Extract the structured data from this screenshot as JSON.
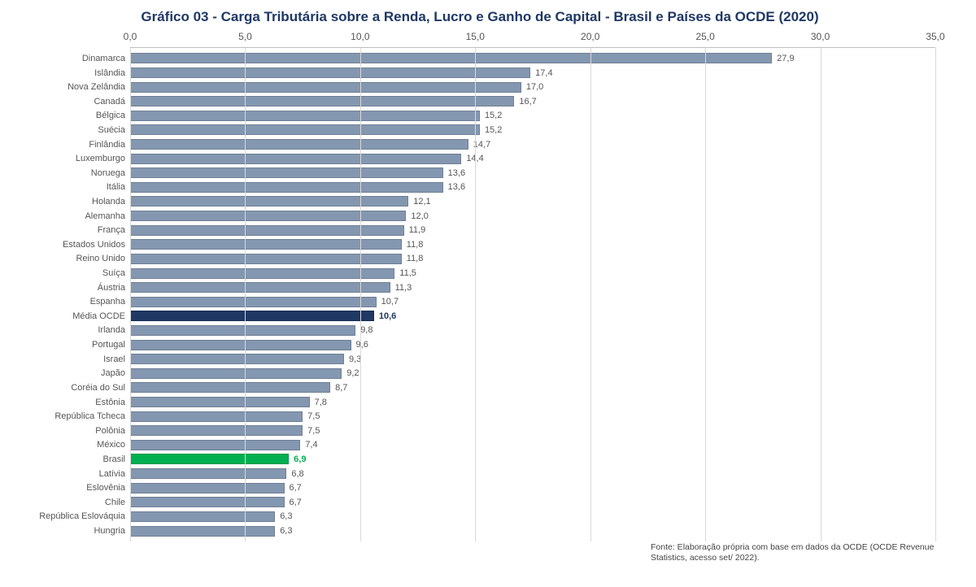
{
  "chart": {
    "type": "bar-horizontal",
    "title": "Gráfico 03 - Carga Tributária sobre a Renda, Lucro e Ganho de Capital - Brasil e Países da OCDE (2020)",
    "title_color": "#1f3864",
    "title_fontsize": 17,
    "title_fontweight": "bold",
    "background_color": "#ffffff",
    "grid_color": "#d9d9d9",
    "axis_line_color": "#bfbfbf",
    "label_fontsize": 11,
    "tick_fontsize": 12,
    "value_fontsize": 11,
    "text_color": "#555555",
    "x_axis": {
      "min": 0.0,
      "max": 35.0,
      "tick_step": 5.0,
      "tick_labels": [
        "0,0",
        "5,0",
        "10,0",
        "15,0",
        "20,0",
        "25,0",
        "30,0",
        "35,0"
      ],
      "position": "top"
    },
    "default_bar_color": "#8497b0",
    "bar_border_color": "rgba(0,0,0,0.15)",
    "highlight_colors": {
      "ocde": "#1f3864",
      "brasil": "#00b050"
    },
    "data": [
      {
        "label": "Dinamarca",
        "value": 27.9,
        "value_str": "27,9",
        "color": "#8497b0",
        "bold": false
      },
      {
        "label": "Islândia",
        "value": 17.4,
        "value_str": "17,4",
        "color": "#8497b0",
        "bold": false
      },
      {
        "label": "Nova Zelândia",
        "value": 17.0,
        "value_str": "17,0",
        "color": "#8497b0",
        "bold": false
      },
      {
        "label": "Canadá",
        "value": 16.7,
        "value_str": "16,7",
        "color": "#8497b0",
        "bold": false
      },
      {
        "label": "Bélgica",
        "value": 15.2,
        "value_str": "15,2",
        "color": "#8497b0",
        "bold": false
      },
      {
        "label": "Suécia",
        "value": 15.2,
        "value_str": "15,2",
        "color": "#8497b0",
        "bold": false
      },
      {
        "label": "Finlândia",
        "value": 14.7,
        "value_str": "14,7",
        "color": "#8497b0",
        "bold": false
      },
      {
        "label": "Luxemburgo",
        "value": 14.4,
        "value_str": "14,4",
        "color": "#8497b0",
        "bold": false
      },
      {
        "label": "Noruega",
        "value": 13.6,
        "value_str": "13,6",
        "color": "#8497b0",
        "bold": false
      },
      {
        "label": "Itália",
        "value": 13.6,
        "value_str": "13,6",
        "color": "#8497b0",
        "bold": false
      },
      {
        "label": "Holanda",
        "value": 12.1,
        "value_str": "12,1",
        "color": "#8497b0",
        "bold": false
      },
      {
        "label": "Alemanha",
        "value": 12.0,
        "value_str": "12,0",
        "color": "#8497b0",
        "bold": false
      },
      {
        "label": "França",
        "value": 11.9,
        "value_str": "11,9",
        "color": "#8497b0",
        "bold": false
      },
      {
        "label": "Estados Unidos",
        "value": 11.8,
        "value_str": "11,8",
        "color": "#8497b0",
        "bold": false
      },
      {
        "label": "Reino Unido",
        "value": 11.8,
        "value_str": "11,8",
        "color": "#8497b0",
        "bold": false
      },
      {
        "label": "Suíça",
        "value": 11.5,
        "value_str": "11,5",
        "color": "#8497b0",
        "bold": false
      },
      {
        "label": "Áustria",
        "value": 11.3,
        "value_str": "11,3",
        "color": "#8497b0",
        "bold": false
      },
      {
        "label": "Espanha",
        "value": 10.7,
        "value_str": "10,7",
        "color": "#8497b0",
        "bold": false
      },
      {
        "label": "Média OCDE",
        "value": 10.6,
        "value_str": "10,6",
        "color": "#1f3864",
        "bold": true
      },
      {
        "label": "Irlanda",
        "value": 9.8,
        "value_str": "9,8",
        "color": "#8497b0",
        "bold": false
      },
      {
        "label": "Portugal",
        "value": 9.6,
        "value_str": "9,6",
        "color": "#8497b0",
        "bold": false
      },
      {
        "label": "Israel",
        "value": 9.3,
        "value_str": "9,3",
        "color": "#8497b0",
        "bold": false
      },
      {
        "label": "Japão",
        "value": 9.2,
        "value_str": "9,2",
        "color": "#8497b0",
        "bold": false
      },
      {
        "label": "Coréia do Sul",
        "value": 8.7,
        "value_str": "8,7",
        "color": "#8497b0",
        "bold": false
      },
      {
        "label": "Estônia",
        "value": 7.8,
        "value_str": "7,8",
        "color": "#8497b0",
        "bold": false
      },
      {
        "label": "República Tcheca",
        "value": 7.5,
        "value_str": "7,5",
        "color": "#8497b0",
        "bold": false
      },
      {
        "label": "Polônia",
        "value": 7.5,
        "value_str": "7,5",
        "color": "#8497b0",
        "bold": false
      },
      {
        "label": "México",
        "value": 7.4,
        "value_str": "7,4",
        "color": "#8497b0",
        "bold": false
      },
      {
        "label": "Brasil",
        "value": 6.9,
        "value_str": "6,9",
        "color": "#00b050",
        "bold": true
      },
      {
        "label": "Latívia",
        "value": 6.8,
        "value_str": "6,8",
        "color": "#8497b0",
        "bold": false
      },
      {
        "label": "Eslovênia",
        "value": 6.7,
        "value_str": "6,7",
        "color": "#8497b0",
        "bold": false
      },
      {
        "label": "Chile",
        "value": 6.7,
        "value_str": "6,7",
        "color": "#8497b0",
        "bold": false
      },
      {
        "label": "República Eslováquia",
        "value": 6.3,
        "value_str": "6,3",
        "color": "#8497b0",
        "bold": false
      },
      {
        "label": "Hungria",
        "value": 6.3,
        "value_str": "6,3",
        "color": "#8497b0",
        "bold": false
      }
    ],
    "source_note": "Fonte:  Elaboração própria com base em dados da OCDE (OCDE Revenue Statistics, acesso set/ 2022)."
  }
}
